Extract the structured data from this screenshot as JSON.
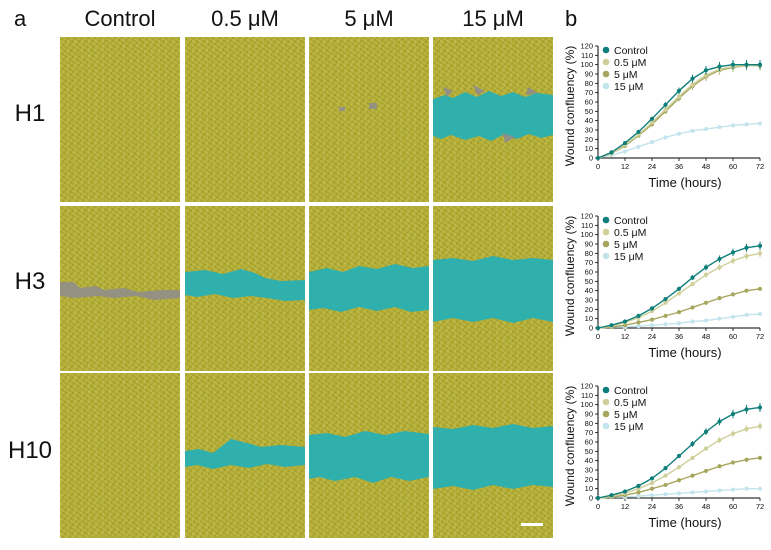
{
  "panel_labels": {
    "a": "a",
    "b": "b"
  },
  "column_headers": [
    "Control",
    "0.5 μM",
    "5 μM",
    "15 μM"
  ],
  "row_headers": [
    "H1",
    "H3",
    "H10"
  ],
  "colors": {
    "cell_layer": "#b2ab32",
    "wound": "#2fb0ad",
    "debris": "#8e8c8e",
    "scale_bar": "#ffffff"
  },
  "legend_markers": {
    "control": "filled-circle",
    "others": "filled-circle"
  },
  "chart_data": [
    {
      "type": "line",
      "panel": "H1",
      "xlabel": "Time (hours)",
      "ylabel": "Wound confluency (%)",
      "x_ticks": [
        0,
        12,
        24,
        36,
        48,
        60,
        72
      ],
      "y_ticks": [
        0,
        10,
        20,
        30,
        40,
        50,
        60,
        70,
        80,
        90,
        100,
        110,
        120
      ],
      "xlim": [
        0,
        72
      ],
      "ylim": [
        0,
        120
      ],
      "legend_position": "top-left",
      "x": [
        0,
        6,
        12,
        18,
        24,
        30,
        36,
        42,
        48,
        54,
        60,
        66,
        72
      ],
      "series": [
        {
          "name": "Control",
          "color": "#0e7e7a",
          "values": [
            0,
            6,
            16,
            28,
            42,
            57,
            72,
            85,
            94,
            98,
            100,
            100,
            100
          ]
        },
        {
          "name": "0.5 μM",
          "color": "#cfcf9a",
          "values": [
            0,
            5,
            14,
            25,
            38,
            52,
            66,
            79,
            89,
            95,
            98,
            99,
            100
          ]
        },
        {
          "name": "5 μM",
          "color": "#a6a65e",
          "values": [
            0,
            5,
            13,
            24,
            36,
            50,
            64,
            77,
            87,
            94,
            97,
            99,
            99
          ]
        },
        {
          "name": "15 μM",
          "color": "#c3e4ec",
          "values": [
            0,
            3,
            7,
            12,
            17,
            22,
            26,
            29,
            31,
            33,
            35,
            36,
            37
          ]
        }
      ]
    },
    {
      "type": "line",
      "panel": "H3",
      "xlabel": "Time (hours)",
      "ylabel": "Wound confluency (%)",
      "x_ticks": [
        0,
        12,
        24,
        36,
        48,
        60,
        72
      ],
      "y_ticks": [
        0,
        10,
        20,
        30,
        40,
        50,
        60,
        70,
        80,
        90,
        100,
        110,
        120
      ],
      "xlim": [
        0,
        72
      ],
      "ylim": [
        0,
        120
      ],
      "legend_position": "top-left",
      "x": [
        0,
        6,
        12,
        18,
        24,
        30,
        36,
        42,
        48,
        54,
        60,
        66,
        72
      ],
      "series": [
        {
          "name": "Control",
          "color": "#0e7e7a",
          "values": [
            0,
            3,
            7,
            13,
            21,
            31,
            42,
            54,
            65,
            74,
            81,
            86,
            88
          ]
        },
        {
          "name": "0.5 μM",
          "color": "#cfcf9a",
          "values": [
            0,
            2,
            6,
            11,
            18,
            27,
            37,
            47,
            57,
            65,
            72,
            77,
            80
          ]
        },
        {
          "name": "5 μM",
          "color": "#a6a65e",
          "values": [
            0,
            1,
            3,
            6,
            9,
            13,
            17,
            22,
            27,
            32,
            36,
            40,
            42
          ]
        },
        {
          "name": "15 μM",
          "color": "#c3e4ec",
          "values": [
            0,
            1,
            1,
            2,
            3,
            4,
            5,
            7,
            8,
            10,
            12,
            14,
            15
          ]
        }
      ]
    },
    {
      "type": "line",
      "panel": "H10",
      "xlabel": "Time (hours)",
      "ylabel": "Wound confluency (%)",
      "x_ticks": [
        0,
        12,
        24,
        36,
        48,
        60,
        72
      ],
      "y_ticks": [
        0,
        10,
        20,
        30,
        40,
        50,
        60,
        70,
        80,
        90,
        100,
        110,
        120
      ],
      "xlim": [
        0,
        72
      ],
      "ylim": [
        0,
        120
      ],
      "legend_position": "top-left",
      "x": [
        0,
        6,
        12,
        18,
        24,
        30,
        36,
        42,
        48,
        54,
        60,
        66,
        72
      ],
      "series": [
        {
          "name": "Control",
          "color": "#0e7e7a",
          "values": [
            0,
            3,
            7,
            13,
            21,
            32,
            45,
            58,
            71,
            82,
            90,
            95,
            97
          ]
        },
        {
          "name": "0.5 μM",
          "color": "#cfcf9a",
          "values": [
            0,
            2,
            5,
            10,
            16,
            24,
            33,
            43,
            53,
            62,
            69,
            74,
            77
          ]
        },
        {
          "name": "5 μM",
          "color": "#a6a65e",
          "values": [
            0,
            1,
            3,
            6,
            10,
            14,
            19,
            24,
            29,
            34,
            38,
            41,
            43
          ]
        },
        {
          "name": "15 μM",
          "color": "#c3e4ec",
          "values": [
            0,
            1,
            1,
            2,
            3,
            4,
            5,
            6,
            7,
            8,
            9,
            10,
            10
          ]
        }
      ]
    }
  ]
}
